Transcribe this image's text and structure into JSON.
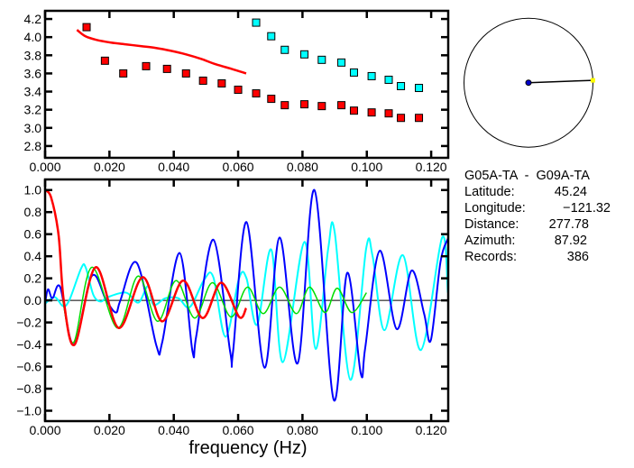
{
  "chart_data": [
    {
      "type": "scatter",
      "xlim": [
        0,
        0.1253
      ],
      "ylim": [
        2.67,
        4.29
      ],
      "xticks": [
        "0.000",
        "0.020",
        "0.040",
        "0.060",
        "0.080",
        "0.100",
        "0.120"
      ],
      "yticks": [
        "4.2",
        "4.0",
        "3.8",
        "3.6",
        "3.4",
        "3.2",
        "3.0",
        "2.8"
      ],
      "grid": false,
      "series": [
        {
          "kind": "points",
          "color": "#ff0000",
          "x": [
            0.0129,
            0.0186,
            0.0243,
            0.0314,
            0.0379,
            0.0438,
            0.0491,
            0.0549,
            0.06,
            0.0656,
            0.0703,
            0.0745,
            0.0806,
            0.086,
            0.0921,
            0.096,
            0.1015,
            0.1068,
            0.1106,
            0.1162
          ],
          "y": [
            4.11,
            3.74,
            3.6,
            3.68,
            3.65,
            3.6,
            3.52,
            3.49,
            3.42,
            3.38,
            3.32,
            3.25,
            3.26,
            3.24,
            3.25,
            3.19,
            3.17,
            3.16,
            3.11,
            3.11
          ]
        },
        {
          "kind": "points",
          "color": "#00ffff",
          "x": [
            0.0656,
            0.0703,
            0.0745,
            0.0806,
            0.086,
            0.0921,
            0.096,
            0.1015,
            0.1068,
            0.1106,
            0.1162
          ],
          "y": [
            4.16,
            4.01,
            3.86,
            3.81,
            3.75,
            3.72,
            3.61,
            3.57,
            3.53,
            3.46,
            3.44
          ]
        },
        {
          "kind": "line",
          "color": "#ff0000",
          "x": [
            0.0099,
            0.0125,
            0.0159,
            0.0205,
            0.0252,
            0.03,
            0.0345,
            0.039,
            0.0438,
            0.0485,
            0.0531,
            0.058,
            0.0625
          ],
          "y": [
            4.08,
            4.01,
            3.97,
            3.94,
            3.92,
            3.9,
            3.88,
            3.85,
            3.81,
            3.76,
            3.7,
            3.65,
            3.6
          ]
        }
      ]
    },
    {
      "type": "line",
      "xlabel": "frequency (Hz)",
      "xlim": [
        0,
        0.1253
      ],
      "ylim": [
        -1.094,
        1.096
      ],
      "xticks": [
        "0.000",
        "0.020",
        "0.040",
        "0.060",
        "0.080",
        "0.100",
        "0.120"
      ],
      "yticks": [
        "1.0",
        "0.8",
        "0.6",
        "0.4",
        "0.2",
        "0.0",
        "−0.2",
        "−0.4",
        "−0.6",
        "−0.8",
        "−1.0"
      ],
      "grid": false,
      "zero_line": true,
      "series": [
        {
          "color": "#00ffff",
          "x": [
            0,
            0.003,
            0.0055,
            0.0075,
            0.0112,
            0.0126,
            0.015,
            0.0173,
            0.0195,
            0.0252,
            0.029,
            0.032,
            0.0337,
            0.0374,
            0.0414,
            0.045,
            0.0495,
            0.0523,
            0.0561,
            0.0603,
            0.0626,
            0.0659,
            0.0703,
            0.0739,
            0.0806,
            0.0841,
            0.088,
            0.09,
            0.0949,
            0.0998,
            0.1018,
            0.1055,
            0.1112,
            0.1168,
            0.1234,
            0.1252
          ],
          "y": [
            -0.03,
            0.03,
            -0.05,
            0.0,
            0.29,
            0.3,
            0.05,
            -0.01,
            0.03,
            0.07,
            -0.02,
            0.13,
            -0.04,
            0.02,
            0.02,
            -0.06,
            0.19,
            0.21,
            -0.33,
            0.2,
            0.2,
            -0.22,
            0.46,
            -0.56,
            0.53,
            -0.44,
            0.47,
            0.62,
            -0.72,
            0.47,
            0.4,
            -0.27,
            0.41,
            -0.45,
            0.57,
            0.07
          ]
        },
        {
          "color": "#0000ff",
          "x": [
            0,
            0.0009,
            0.0023,
            0.0047,
            0.0089,
            0.0145,
            0.019,
            0.022,
            0.0234,
            0.0285,
            0.0346,
            0.0364,
            0.0418,
            0.0458,
            0.047,
            0.0523,
            0.0575,
            0.0584,
            0.0626,
            0.0682,
            0.0729,
            0.0785,
            0.0837,
            0.0897,
            0.0939,
            0.0981,
            0.0995,
            0.104,
            0.1093,
            0.1139,
            0.1178,
            0.1199,
            0.1229,
            0.1252
          ],
          "y": [
            -0.03,
            0.1,
            0.02,
            0.12,
            -0.4,
            0.22,
            0.0,
            -0.11,
            0.0,
            0.34,
            -0.41,
            -0.38,
            0.43,
            -0.46,
            -0.32,
            0.55,
            -0.46,
            -0.47,
            0.71,
            -0.61,
            0.57,
            -0.57,
            1.0,
            -0.9,
            0.25,
            -0.66,
            -0.43,
            0.45,
            -0.26,
            0.27,
            -0.12,
            -0.36,
            0.35,
            0.56
          ]
        },
        {
          "color": "#00dd00",
          "x": [
            0.0055,
            0.0089,
            0.0145,
            0.0225,
            0.0289,
            0.035,
            0.0407,
            0.0465,
            0.052,
            0.0578,
            0.0629,
            0.0678,
            0.0729,
            0.0781,
            0.0822,
            0.087,
            0.0908,
            0.0953,
            0.0999
          ],
          "y": [
            0,
            -0.38,
            0.3,
            -0.25,
            0.22,
            -0.19,
            0.18,
            -0.16,
            0.16,
            -0.15,
            0.12,
            -0.12,
            0.12,
            -0.12,
            0.12,
            -0.11,
            0.11,
            -0.11,
            0.07
          ]
        },
        {
          "color": "#ff0000",
          "x": [
            0,
            0.0019,
            0.0042,
            0.0058,
            0.0092,
            0.0157,
            0.0229,
            0.0303,
            0.0364,
            0.0429,
            0.049,
            0.0547,
            0.0603,
            0.0625
          ],
          "y": [
            1.0,
            0.93,
            0.59,
            0.0,
            -0.4,
            0.3,
            -0.25,
            0.21,
            -0.19,
            0.18,
            -0.16,
            0.16,
            -0.15,
            -0.07
          ]
        }
      ]
    }
  ],
  "map": {
    "azimuth_deg": 87.92
  },
  "info": {
    "title": "G05A-TA  -  G09A-TA",
    "rows": [
      {
        "label": "Latitude:",
        "value": "45.24"
      },
      {
        "label": "Longitude:",
        "value": "−121.32"
      },
      {
        "label": "Distance:",
        "value": "277.78"
      },
      {
        "label": "Azimuth:",
        "value": "87.92"
      },
      {
        "label": "Records:",
        "value": "386"
      }
    ]
  }
}
